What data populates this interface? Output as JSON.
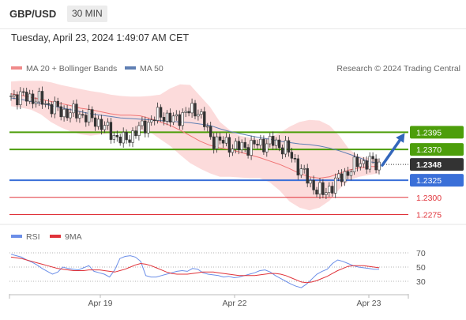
{
  "header": {
    "symbol": "GBP/USD",
    "timeframe": "30 MIN",
    "datetime": "Tuesday, April 23, 2024 1:49:07 AM CET"
  },
  "legend": {
    "ma20_label": "MA 20 + Bollinger Bands",
    "ma50_label": "MA 50",
    "credit": "Research © 2024 Trading Central",
    "rsi_label": "RSI",
    "rsi9_label": "9MA"
  },
  "colors": {
    "green": "#4d9e0b",
    "blue": "#3a6fd8",
    "red": "#e0333a",
    "dark": "#333333",
    "band_fill": "#fbd5d5",
    "ma20": "#f07575",
    "ma50": "#5f7fb3",
    "rsi": "#6b8ee8",
    "rsi9": "#e0333a",
    "arrow": "#3366bb"
  },
  "chart_data": [
    {
      "type": "candlestick",
      "title": "GBP/USD",
      "timeframe": "30 MIN",
      "ylim": [
        1.2264,
        1.2475
      ],
      "x_ticks": [
        "Apr 19",
        "Apr 22",
        "Apr 23"
      ],
      "current_price": "1.2348",
      "levels": [
        {
          "label": "1.2395",
          "value": 1.2395,
          "color": "#4d9e0b",
          "kind": "resistance"
        },
        {
          "label": "1.2370",
          "value": 1.237,
          "color": "#4d9e0b",
          "kind": "resistance"
        },
        {
          "label": "1.2325",
          "value": 1.2325,
          "color": "#3a6fd8",
          "kind": "pivot"
        },
        {
          "label": "1.2300",
          "value": 1.23,
          "color": "#e0333a",
          "kind": "support"
        },
        {
          "label": "1.2275",
          "value": 1.2275,
          "color": "#e0333a",
          "kind": "support"
        }
      ],
      "projection": {
        "from": 1.2348,
        "to": 1.2395,
        "direction": "up"
      },
      "series": [
        {
          "name": "MA 20 + Bollinger Bands",
          "ma": [
            1.2451,
            1.2449,
            1.2446,
            1.2443,
            1.244,
            1.2437,
            1.2434,
            1.243,
            1.2428,
            1.2425,
            1.2422,
            1.242,
            1.242,
            1.2419,
            1.2415,
            1.241,
            1.2405,
            1.2398,
            1.239,
            1.2382,
            1.2376,
            1.2372,
            1.237,
            1.2366,
            1.2362,
            1.2358,
            1.2353,
            1.2348,
            1.2342,
            1.2335,
            1.233,
            1.2328,
            1.233,
            1.2335,
            1.234,
            1.2343,
            1.2345,
            1.2345
          ],
          "upper": [
            1.2469,
            1.247,
            1.247,
            1.247,
            1.2468,
            1.2464,
            1.2461,
            1.2458,
            1.2455,
            1.2453,
            1.245,
            1.2448,
            1.2447,
            1.2447,
            1.2448,
            1.245,
            1.2459,
            1.2465,
            1.2464,
            1.2448,
            1.2432,
            1.241,
            1.2398,
            1.239,
            1.2387,
            1.2385,
            1.2388,
            1.2394,
            1.2403,
            1.241,
            1.2413,
            1.2412,
            1.2405,
            1.239,
            1.237,
            1.236,
            1.2357,
            1.2356
          ],
          "lower": [
            1.2433,
            1.2431,
            1.2428,
            1.2421,
            1.241,
            1.2402,
            1.2396,
            1.2392,
            1.239,
            1.2392,
            1.2393,
            1.2395,
            1.2397,
            1.2398,
            1.2395,
            1.2385,
            1.2375,
            1.2362,
            1.235,
            1.2342,
            1.2335,
            1.233,
            1.233,
            1.2329,
            1.2328,
            1.2328,
            1.2322,
            1.231,
            1.2294,
            1.2285,
            1.2281,
            1.2285,
            1.2295,
            1.2312,
            1.2325,
            1.233,
            1.2333,
            1.2335
          ]
        },
        {
          "name": "MA 50",
          "values": [
            1.2445,
            1.2443,
            1.244,
            1.2437,
            1.2434,
            1.2431,
            1.2428,
            1.2425,
            1.2422,
            1.242,
            1.2418,
            1.2416,
            1.2415,
            1.2414,
            1.2413,
            1.2412,
            1.2411,
            1.241,
            1.2409,
            1.2407,
            1.2405,
            1.24,
            1.2396,
            1.2393,
            1.239,
            1.2387,
            1.2385,
            1.2382,
            1.238,
            1.2378,
            1.2377,
            1.2375,
            1.2372,
            1.2368,
            1.2363,
            1.2358,
            1.2352,
            1.235
          ]
        }
      ]
    },
    {
      "type": "line",
      "title": "RSI",
      "ylim": [
        30,
        70
      ],
      "y_ticks": [
        "70",
        "50",
        "30"
      ],
      "series": [
        {
          "name": "RSI",
          "values": [
            68,
            66,
            64,
            60,
            57,
            53,
            48,
            44,
            40,
            43,
            50,
            48,
            47,
            46,
            49,
            52,
            44,
            42,
            40,
            36,
            46,
            62,
            65,
            66,
            64,
            58,
            38,
            36,
            36,
            38,
            40,
            42,
            44,
            45,
            44,
            48,
            47,
            42,
            40,
            39,
            38,
            36,
            37,
            35,
            36,
            38,
            40,
            42,
            45,
            46,
            43,
            38,
            34,
            30,
            26,
            23,
            21,
            26,
            33,
            40,
            44,
            47,
            55,
            60,
            58,
            55,
            52,
            50,
            49,
            48,
            47,
            47
          ]
        },
        {
          "name": "9MA",
          "values": [
            64,
            63,
            62,
            60,
            58,
            56,
            54,
            52,
            50,
            48,
            47,
            46,
            45,
            45,
            45,
            46,
            46,
            46,
            45,
            44,
            43,
            45,
            47,
            50,
            53,
            55,
            54,
            52,
            49,
            46,
            43,
            41,
            40,
            40,
            40,
            41,
            42,
            43,
            43,
            43,
            42,
            41,
            40,
            39,
            38,
            38,
            38,
            38,
            39,
            40,
            41,
            41,
            40,
            38,
            35,
            32,
            29,
            28,
            29,
            31,
            34,
            37,
            41,
            45,
            48,
            51,
            52,
            52,
            52,
            51,
            50,
            49
          ]
        }
      ]
    }
  ]
}
